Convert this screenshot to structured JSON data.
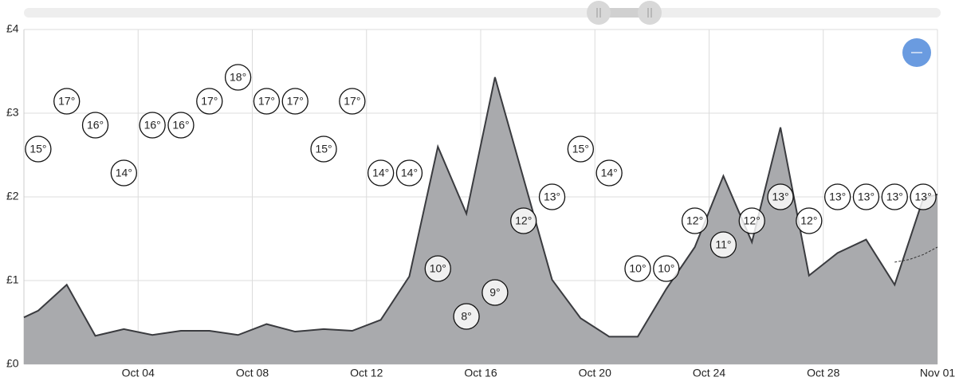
{
  "chart_data": {
    "type": "area",
    "x": [
      0,
      0.5,
      1.5,
      2.5,
      3.5,
      4.5,
      5.5,
      6.5,
      7.5,
      8.5,
      9.5,
      10.5,
      11.5,
      12.5,
      13.5,
      14.5,
      15.5,
      16.5,
      17.5,
      18.5,
      19.5,
      20.5,
      21.5,
      22.5,
      23.5,
      24.5,
      25.5,
      26.5,
      27.5,
      28.5,
      29.5,
      30.5,
      31.5,
      32
    ],
    "series": [
      {
        "color": "#a9aaad",
        "values": [
          0.56,
          0.64,
          0.95,
          0.34,
          0.42,
          0.35,
          0.4,
          0.4,
          0.35,
          0.48,
          0.39,
          0.42,
          0.4,
          0.53,
          1.05,
          2.6,
          1.8,
          3.43,
          2.22,
          1.01,
          0.55,
          0.33,
          0.33,
          0.9,
          1.4,
          2.25,
          1.46,
          2.83,
          1.06,
          1.33,
          1.49,
          0.95,
          1.98,
          2.03
        ]
      },
      {
        "color": "#333333",
        "dashed": true,
        "x": [
          30.5,
          31,
          31.5,
          32
        ],
        "values": [
          1.22,
          1.25,
          1.31,
          1.4
        ]
      },
      {
        "color": "#ffffff",
        "axis": "y2",
        "x": [
          0.5,
          1.5,
          2.5,
          3.5,
          4.5,
          5.5,
          6.5,
          7.5,
          8.5,
          9.5,
          10.5,
          11.5,
          12.5,
          13.5,
          14.5,
          15.5,
          16.5,
          17.5,
          18.5,
          19.5,
          20.5,
          21.5,
          22.5,
          23.5,
          24.5,
          25.5,
          26.5,
          27.5,
          28.5,
          29.5,
          30.5,
          31.5
        ],
        "values": [
          15,
          17,
          16,
          14,
          16,
          16,
          17,
          18,
          17,
          17,
          15,
          17,
          14,
          14,
          10,
          8,
          9,
          12,
          13,
          15,
          14,
          10,
          10,
          12,
          11,
          12,
          13,
          12,
          13,
          13,
          13,
          13
        ],
        "value_labels": [
          "15°",
          "17°",
          "16°",
          "14°",
          "16°",
          "16°",
          "17°",
          "18°",
          "17°",
          "17°",
          "15°",
          "17°",
          "14°",
          "14°",
          "10°",
          "8°",
          "9°",
          "12°",
          "13°",
          "15°",
          "14°",
          "10°",
          "10°",
          "12°",
          "11°",
          "12°",
          "13°",
          "12°",
          "13°",
          "13°",
          "13°",
          "13°"
        ]
      }
    ],
    "xlim": [
      0,
      32
    ],
    "xticks": [
      {
        "value": 4,
        "label": "Oct 04"
      },
      {
        "value": 8,
        "label": "Oct 08"
      },
      {
        "value": 12,
        "label": "Oct 12"
      },
      {
        "value": 16,
        "label": "Oct 16"
      },
      {
        "value": 20,
        "label": "Oct 20"
      },
      {
        "value": 24,
        "label": "Oct 24"
      },
      {
        "value": 28,
        "label": "Oct 28"
      },
      {
        "value": 32,
        "label": "Nov 01"
      }
    ],
    "ylim": [
      0,
      4
    ],
    "yticks": [
      {
        "value": 0,
        "label": "£0"
      },
      {
        "value": 1,
        "label": "£1"
      },
      {
        "value": 2,
        "label": "£2"
      },
      {
        "value": 3,
        "label": "£3"
      },
      {
        "value": 4,
        "label": "£4"
      }
    ],
    "y2lim": [
      6,
      20
    ],
    "grid": true
  }
}
